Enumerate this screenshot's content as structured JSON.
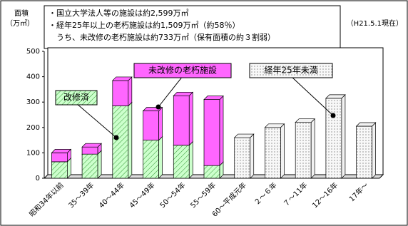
{
  "chart_data": {
    "type": "bar",
    "stacked": true,
    "y_label_lines": [
      "面積",
      "（万㎡）"
    ],
    "annotations": [
      "・国立大学法人等の施設は約2,599万㎡",
      "・経年25年以上の老朽施設は約1,509万㎡（約58％）",
      "　うち、未改修の老朽施設は約733万㎡（保有面積の約３割弱）"
    ],
    "date_note": "（H21.5.1現在）",
    "categories": [
      "昭和34年以前",
      "35～39年",
      "40～44年",
      "45～49年",
      "50～54年",
      "55～59年",
      "60～平成元年",
      "２～６年",
      "７～11年",
      "12～16年",
      "17年～"
    ],
    "series": [
      {
        "name": "改修済",
        "color": "#ccffcc",
        "pattern": "hatch",
        "values": [
          65,
          95,
          285,
          150,
          130,
          50,
          null,
          null,
          null,
          null,
          null
        ]
      },
      {
        "name": "未改修の老朽施設",
        "color": "#ff66ff",
        "pattern": "solid",
        "values": [
          35,
          28,
          100,
          115,
          195,
          260,
          null,
          null,
          null,
          null,
          null
        ]
      },
      {
        "name": "経年25年未満",
        "color": "#f2f2f2",
        "pattern": "dots",
        "values": [
          null,
          null,
          null,
          null,
          null,
          null,
          160,
          200,
          220,
          315,
          205
        ]
      }
    ],
    "ylim": [
      0,
      500
    ],
    "yticks": [
      0,
      100,
      200,
      300,
      400,
      500
    ]
  }
}
